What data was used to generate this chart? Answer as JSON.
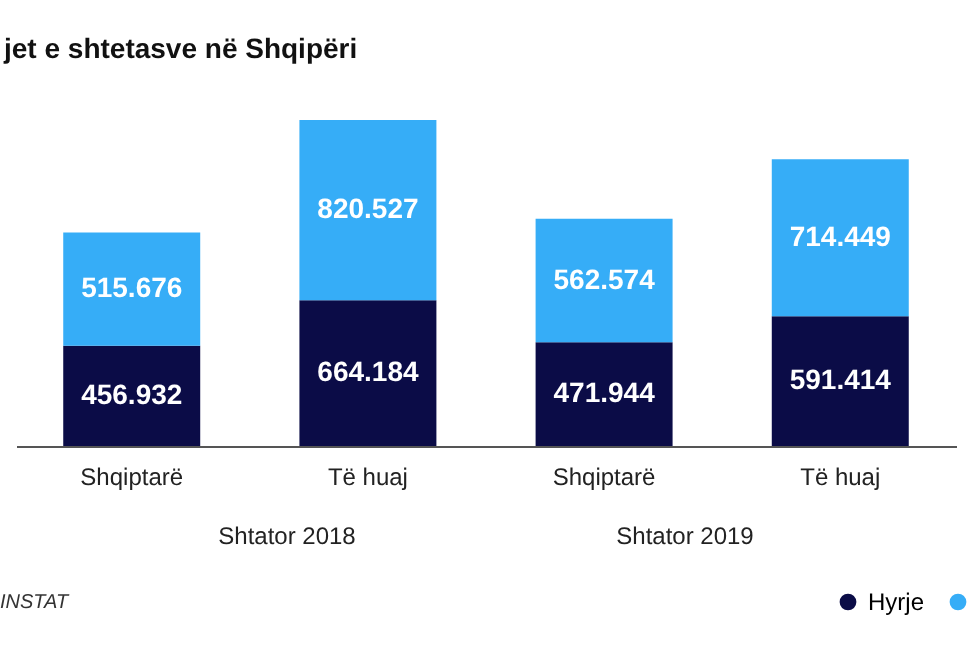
{
  "chart_data": {
    "type": "bar",
    "title": "jet e shtetasve në Shqipëri",
    "stacked": true,
    "legend": "bottom right",
    "categories": [
      "Shqiptarë",
      "Të huaj",
      "Shqiptarë",
      "Të huaj"
    ],
    "series": [
      {
        "name": "Hyrje",
        "color": "#0b0c47",
        "values": [
          456932,
          664184,
          471944,
          591414
        ],
        "value_labels": [
          "456.932",
          "664.184",
          "471.944",
          "591.414"
        ]
      },
      {
        "color": "#36adf7",
        "values": [
          515676,
          820527,
          562574,
          714449
        ],
        "value_labels": [
          "515.676",
          "820.527",
          "562.574",
          "714.449"
        ]
      }
    ],
    "annotations": [
      "Shtator 2018",
      "Shtator 2019",
      "INSTAT"
    ]
  }
}
